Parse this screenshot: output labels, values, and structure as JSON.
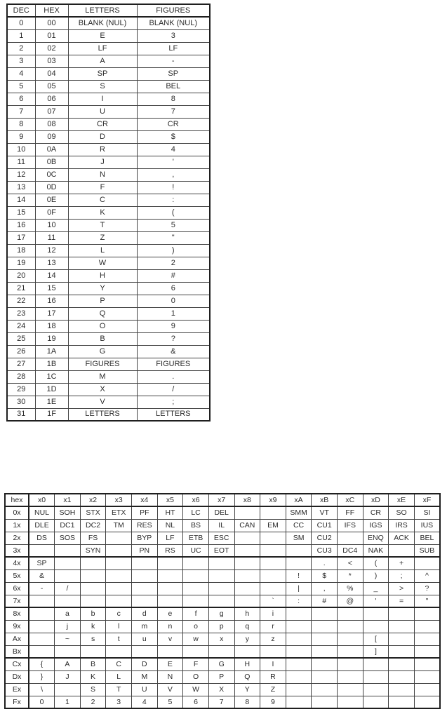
{
  "baudot_table": {
    "headers": [
      "DEC",
      "HEX",
      "LETTERS",
      "FIGURES"
    ],
    "rows": [
      [
        "0",
        "00",
        "BLANK (NUL)",
        "BLANK (NUL)"
      ],
      [
        "1",
        "01",
        "E",
        "3"
      ],
      [
        "2",
        "02",
        "LF",
        "LF"
      ],
      [
        "3",
        "03",
        "A",
        "-"
      ],
      [
        "4",
        "04",
        "SP",
        "SP"
      ],
      [
        "5",
        "05",
        "S",
        "BEL"
      ],
      [
        "6",
        "06",
        "I",
        "8"
      ],
      [
        "7",
        "07",
        "U",
        "7"
      ],
      [
        "8",
        "08",
        "CR",
        "CR"
      ],
      [
        "9",
        "09",
        "D",
        "$"
      ],
      [
        "10",
        "0A",
        "R",
        "4"
      ],
      [
        "11",
        "0B",
        "J",
        "'"
      ],
      [
        "12",
        "0C",
        "N",
        ","
      ],
      [
        "13",
        "0D",
        "F",
        "!"
      ],
      [
        "14",
        "0E",
        "C",
        ":"
      ],
      [
        "15",
        "0F",
        "K",
        "("
      ],
      [
        "16",
        "10",
        "T",
        "5"
      ],
      [
        "17",
        "11",
        "Z",
        "\""
      ],
      [
        "18",
        "12",
        "L",
        ")"
      ],
      [
        "19",
        "13",
        "W",
        "2"
      ],
      [
        "20",
        "14",
        "H",
        "#"
      ],
      [
        "21",
        "15",
        "Y",
        "6"
      ],
      [
        "22",
        "16",
        "P",
        "0"
      ],
      [
        "23",
        "17",
        "Q",
        "1"
      ],
      [
        "24",
        "18",
        "O",
        "9"
      ],
      [
        "25",
        "19",
        "B",
        "?"
      ],
      [
        "26",
        "1A",
        "G",
        "&"
      ],
      [
        "27",
        "1B",
        "FIGURES",
        "FIGURES"
      ],
      [
        "28",
        "1C",
        "M",
        "."
      ],
      [
        "29",
        "1D",
        "X",
        "/"
      ],
      [
        "30",
        "1E",
        "V",
        ";"
      ],
      [
        "31",
        "1F",
        "LETTERS",
        "LETTERS"
      ]
    ]
  },
  "ebcdic_table": {
    "headers": [
      "hex",
      "x0",
      "x1",
      "x2",
      "x3",
      "x4",
      "x5",
      "x6",
      "x7",
      "x8",
      "x9",
      "xA",
      "xB",
      "xC",
      "xD",
      "xE",
      "xF"
    ],
    "rows": [
      [
        "0x",
        "NUL",
        "SOH",
        "STX",
        "ETX",
        "PF",
        "HT",
        "LC",
        "DEL",
        "",
        "",
        "SMM",
        "VT",
        "FF",
        "CR",
        "SO",
        "SI"
      ],
      [
        "1x",
        "DLE",
        "DC1",
        "DC2",
        "TM",
        "RES",
        "NL",
        "BS",
        "IL",
        "CAN",
        "EM",
        "CC",
        "CU1",
        "IFS",
        "IGS",
        "IRS",
        "IUS"
      ],
      [
        "2x",
        "DS",
        "SOS",
        "FS",
        "",
        "BYP",
        "LF",
        "ETB",
        "ESC",
        "",
        "",
        "SM",
        "CU2",
        "",
        "ENQ",
        "ACK",
        "BEL"
      ],
      [
        "3x",
        "",
        "",
        "SYN",
        "",
        "PN",
        "RS",
        "UC",
        "EOT",
        "",
        "",
        "",
        "CU3",
        "DC4",
        "NAK",
        "",
        "SUB"
      ],
      [
        "4x",
        "SP",
        "",
        "",
        "",
        "",
        "",
        "",
        "",
        "",
        "",
        "",
        ".",
        "<",
        "(",
        "+",
        ""
      ],
      [
        "5x",
        "&",
        "",
        "",
        "",
        "",
        "",
        "",
        "",
        "",
        "",
        "!",
        "$",
        "*",
        ")",
        ";",
        "^"
      ],
      [
        "6x",
        "-",
        "/",
        "",
        "",
        "",
        "",
        "",
        "",
        "",
        "",
        "|",
        ",",
        "%",
        "_",
        ">",
        "?"
      ],
      [
        "7x",
        "",
        "",
        "",
        "",
        "",
        "",
        "",
        "",
        "",
        "`",
        ":",
        "#",
        "@",
        "'",
        "=",
        "\""
      ],
      [
        "8x",
        "",
        "a",
        "b",
        "c",
        "d",
        "e",
        "f",
        "g",
        "h",
        "i",
        "",
        "",
        "",
        "",
        "",
        ""
      ],
      [
        "9x",
        "",
        "j",
        "k",
        "l",
        "m",
        "n",
        "o",
        "p",
        "q",
        "r",
        "",
        "",
        "",
        "",
        "",
        ""
      ],
      [
        "Ax",
        "",
        "~",
        "s",
        "t",
        "u",
        "v",
        "w",
        "x",
        "y",
        "z",
        "",
        "",
        "",
        "[",
        "",
        ""
      ],
      [
        "Bx",
        "",
        "",
        "",
        "",
        "",
        "",
        "",
        "",
        "",
        "",
        "",
        "",
        "",
        "]",
        "",
        ""
      ],
      [
        "Cx",
        "{",
        "A",
        "B",
        "C",
        "D",
        "E",
        "F",
        "G",
        "H",
        "I",
        "",
        "",
        "",
        "",
        "",
        ""
      ],
      [
        "Dx",
        "}",
        "J",
        "K",
        "L",
        "M",
        "N",
        "O",
        "P",
        "Q",
        "R",
        "",
        "",
        "",
        "",
        "",
        ""
      ],
      [
        "Ex",
        "\\",
        "",
        "S",
        "T",
        "U",
        "V",
        "W",
        "X",
        "Y",
        "Z",
        "",
        "",
        "",
        "",
        "",
        ""
      ],
      [
        "Fx",
        "0",
        "1",
        "2",
        "3",
        "4",
        "5",
        "6",
        "7",
        "8",
        "9",
        "",
        "",
        "",
        "",
        "",
        ""
      ]
    ]
  }
}
